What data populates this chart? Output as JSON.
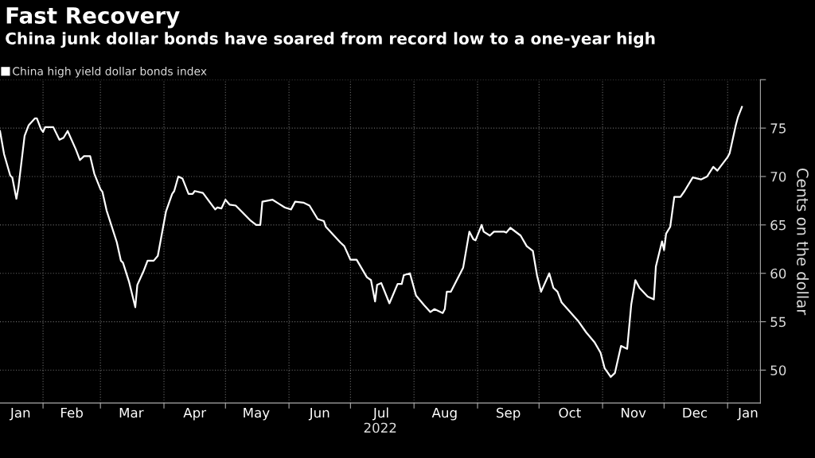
{
  "chart_data": {
    "type": "line",
    "title": "Fast Recovery",
    "subtitle": "China junk dollar bonds have soared from record low to a one-year high",
    "xlabel": "2022",
    "ylabel": "Cents on the dollar",
    "x": [
      "2022-01-11",
      "2022-01-13",
      "2022-01-16",
      "2022-01-17",
      "2022-01-19",
      "2022-01-20",
      "2022-01-23",
      "2022-01-25",
      "2022-01-28",
      "2022-01-29",
      "2022-01-31",
      "2022-02-01",
      "2022-02-02",
      "2022-02-06",
      "2022-02-09",
      "2022-02-11",
      "2022-02-13",
      "2022-02-17",
      "2022-02-19",
      "2022-02-21",
      "2022-02-24",
      "2022-02-26",
      "2022-03-01",
      "2022-03-02",
      "2022-03-04",
      "2022-03-09",
      "2022-03-11",
      "2022-03-12",
      "2022-03-15",
      "2022-03-18",
      "2022-03-19",
      "2022-03-22",
      "2022-03-24",
      "2022-03-27",
      "2022-03-29",
      "2022-04-02",
      "2022-04-05",
      "2022-04-06",
      "2022-04-08",
      "2022-04-10",
      "2022-04-13",
      "2022-04-15",
      "2022-04-16",
      "2022-04-20",
      "2022-04-26",
      "2022-04-27",
      "2022-04-29",
      "2022-05-01",
      "2022-05-03",
      "2022-05-06",
      "2022-05-13",
      "2022-05-16",
      "2022-05-18",
      "2022-05-19",
      "2022-05-24",
      "2022-05-27",
      "2022-05-30",
      "2022-06-02",
      "2022-06-04",
      "2022-06-08",
      "2022-06-11",
      "2022-06-15",
      "2022-06-18",
      "2022-06-19",
      "2022-06-26",
      "2022-06-28",
      "2022-07-01",
      "2022-07-04",
      "2022-07-09",
      "2022-07-11",
      "2022-07-13",
      "2022-07-14",
      "2022-07-16",
      "2022-07-20",
      "2022-07-24",
      "2022-07-26",
      "2022-07-27",
      "2022-07-30",
      "2022-08-02",
      "2022-08-06",
      "2022-08-09",
      "2022-08-11",
      "2022-08-15",
      "2022-08-16",
      "2022-08-17",
      "2022-08-19",
      "2022-08-25",
      "2022-08-28",
      "2022-08-30",
      "2022-08-31",
      "2022-09-03",
      "2022-09-04",
      "2022-09-07",
      "2022-09-09",
      "2022-09-14",
      "2022-09-15",
      "2022-09-17",
      "2022-09-22",
      "2022-09-25",
      "2022-09-28",
      "2022-09-30",
      "2022-10-02",
      "2022-10-06",
      "2022-10-08",
      "2022-10-10",
      "2022-10-12",
      "2022-10-20",
      "2022-10-24",
      "2022-10-28",
      "2022-10-31",
      "2022-11-02",
      "2022-11-05",
      "2022-11-07",
      "2022-11-10",
      "2022-11-13",
      "2022-11-15",
      "2022-11-17",
      "2022-11-19",
      "2022-11-23",
      "2022-11-26",
      "2022-11-27",
      "2022-11-30",
      "2022-12-01",
      "2022-12-02",
      "2022-12-04",
      "2022-12-06",
      "2022-12-09",
      "2022-12-11",
      "2022-12-15",
      "2022-12-19",
      "2022-12-22",
      "2022-12-25",
      "2022-12-27",
      "2023-01-01",
      "2023-01-02",
      "2023-01-05",
      "2023-01-06",
      "2023-01-08"
    ],
    "series": [
      {
        "name": "China high yield dollar bonds index",
        "color": "#ffffff",
        "values": [
          74.7,
          72.3,
          70.1,
          69.9,
          67.7,
          68.9,
          74.2,
          75.3,
          76.0,
          76.0,
          74.9,
          74.6,
          75.1,
          75.1,
          73.8,
          74.0,
          74.7,
          72.8,
          71.7,
          72.1,
          72.1,
          70.3,
          68.7,
          68.4,
          66.5,
          63.2,
          61.3,
          61.1,
          59.1,
          56.5,
          58.8,
          60.2,
          61.3,
          61.3,
          61.8,
          66.4,
          68.2,
          68.5,
          70.0,
          69.8,
          68.2,
          68.2,
          68.5,
          68.3,
          66.6,
          66.8,
          66.7,
          67.6,
          67.1,
          67.0,
          65.5,
          65.0,
          65.0,
          67.4,
          67.6,
          67.2,
          66.8,
          66.6,
          67.4,
          67.3,
          67.0,
          65.6,
          65.4,
          64.8,
          63.2,
          62.8,
          61.4,
          61.4,
          59.6,
          59.3,
          57.1,
          58.8,
          59.0,
          56.9,
          58.9,
          58.9,
          59.8,
          60.0,
          57.7,
          56.7,
          56.0,
          56.3,
          55.9,
          56.3,
          58.1,
          58.1,
          60.6,
          64.3,
          63.5,
          63.4,
          65.0,
          64.3,
          63.9,
          64.3,
          64.3,
          64.2,
          64.7,
          63.9,
          62.8,
          62.3,
          59.8,
          58.1,
          60.0,
          58.5,
          58.1,
          57.0,
          55.1,
          53.9,
          52.9,
          51.8,
          50.2,
          49.3,
          49.7,
          52.5,
          52.2,
          56.8,
          59.3,
          58.5,
          57.6,
          57.3,
          60.7,
          63.3,
          62.4,
          64.1,
          64.8,
          67.9,
          67.9,
          68.5,
          69.9,
          69.7,
          70.0,
          71.0,
          70.6,
          72.0,
          72.4,
          75.3,
          76.1,
          77.2
        ]
      }
    ],
    "xlim": [
      "2022-01-11",
      "2023-01-17"
    ],
    "xticks": [
      {
        "value": "2022-02-01",
        "label": null
      },
      {
        "value": "2022-03-01",
        "label": null
      },
      {
        "value": "2022-04-01",
        "label": null
      },
      {
        "value": "2022-05-01",
        "label": null
      },
      {
        "value": "2022-06-01",
        "label": null
      },
      {
        "value": "2022-07-01",
        "label": null
      },
      {
        "value": "2022-08-01",
        "label": null
      },
      {
        "value": "2022-09-01",
        "label": null
      },
      {
        "value": "2022-10-01",
        "label": null
      },
      {
        "value": "2022-11-01",
        "label": null
      },
      {
        "value": "2022-12-01",
        "label": null
      },
      {
        "value": "2023-01-01",
        "label": null
      },
      {
        "value": "2022-01-21",
        "label": "Jan"
      },
      {
        "value": "2022-02-15",
        "label": "Feb"
      },
      {
        "value": "2022-03-16",
        "label": "Mar"
      },
      {
        "value": "2022-04-16",
        "label": "Apr"
      },
      {
        "value": "2022-05-16",
        "label": "May"
      },
      {
        "value": "2022-06-16",
        "label": "Jun"
      },
      {
        "value": "2022-07-16",
        "label": "Jul"
      },
      {
        "value": "2022-08-16",
        "label": "Aug"
      },
      {
        "value": "2022-09-16",
        "label": "Sep"
      },
      {
        "value": "2022-10-16",
        "label": "Oct"
      },
      {
        "value": "2022-11-16",
        "label": "Nov"
      },
      {
        "value": "2022-12-16",
        "label": "Dec"
      },
      {
        "value": "2023-01-11",
        "label": "Jan"
      }
    ],
    "ylim": [
      46.6,
      80
    ],
    "yticks": [
      50,
      55,
      60,
      65,
      70,
      75,
      {
        "value": 80,
        "label": null
      }
    ],
    "grid": true,
    "legend": "top left",
    "line_style": "solid",
    "marker": "none"
  }
}
